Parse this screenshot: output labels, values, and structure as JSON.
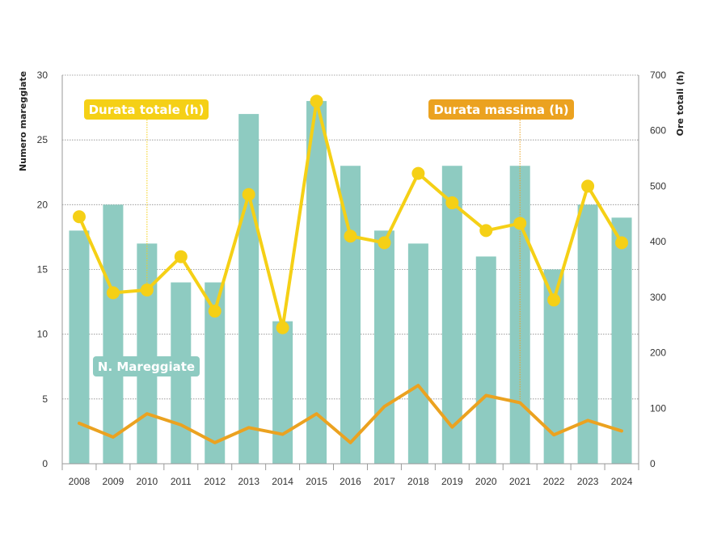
{
  "chart_data": {
    "type": "bar+line",
    "categories": [
      "2008",
      "2009",
      "2010",
      "2011",
      "2012",
      "2013",
      "2014",
      "2015",
      "2016",
      "2017",
      "2018",
      "2019",
      "2020",
      "2021",
      "2022",
      "2023",
      "2024"
    ],
    "series": [
      {
        "name": "N. Mareggiate",
        "type": "bar",
        "axis": "left",
        "color": "#8ecbc1",
        "values": [
          18,
          20,
          17,
          14,
          14,
          27,
          11,
          28,
          23,
          18,
          17,
          23,
          16,
          23,
          15,
          20,
          19
        ]
      },
      {
        "name": "Durata totale (h)",
        "type": "line-markers",
        "axis": "right",
        "color": "#f5d016",
        "values": [
          445,
          308,
          313,
          373,
          275,
          485,
          245,
          653,
          410,
          398,
          523,
          470,
          420,
          433,
          295,
          500,
          398
        ]
      },
      {
        "name": "Durata massima (h)",
        "type": "line",
        "axis": "right",
        "color": "#eba220",
        "values": [
          73,
          48,
          90,
          70,
          38,
          65,
          53,
          90,
          38,
          103,
          141,
          66,
          123,
          110,
          52,
          78,
          59
        ]
      }
    ],
    "y_left": {
      "label": "Numero mareggiate",
      "ticks": [
        "0",
        "5",
        "10",
        "15",
        "20",
        "25",
        "30"
      ],
      "range": [
        0,
        30
      ]
    },
    "y_right": {
      "label": "Ore totali (h)",
      "ticks": [
        "0",
        "100",
        "200",
        "300",
        "400",
        "500",
        "600",
        "700"
      ],
      "range": [
        0,
        700
      ]
    },
    "grid": true,
    "labels": {
      "total": "Durata totale (h)",
      "max": "Durata massima (h)",
      "count": "N. Mareggiate"
    }
  }
}
